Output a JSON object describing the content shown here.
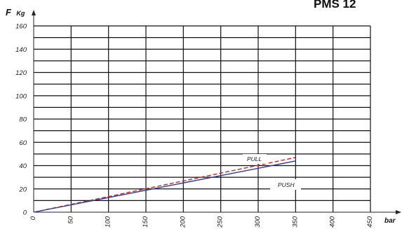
{
  "chart_data": {
    "type": "line",
    "title": "PMS 12",
    "ylabel_main": "F",
    "ylabel_unit": "Kg",
    "xlabel": "bar",
    "xlim": [
      0,
      450
    ],
    "ylim": [
      0,
      160
    ],
    "x_ticks": [
      0,
      50,
      100,
      150,
      200,
      250,
      300,
      350,
      400,
      450
    ],
    "y_ticks": [
      0,
      20,
      40,
      60,
      80,
      100,
      120,
      140,
      160
    ],
    "grid": true,
    "series": [
      {
        "name": "PULL",
        "color": "#cc2222",
        "style": "dashed",
        "x": [
          0,
          350
        ],
        "y": [
          0,
          47
        ]
      },
      {
        "name": "PUSH",
        "color": "#2a3a9a",
        "style": "solid",
        "x": [
          0,
          350
        ],
        "y": [
          0,
          44
        ]
      }
    ]
  }
}
